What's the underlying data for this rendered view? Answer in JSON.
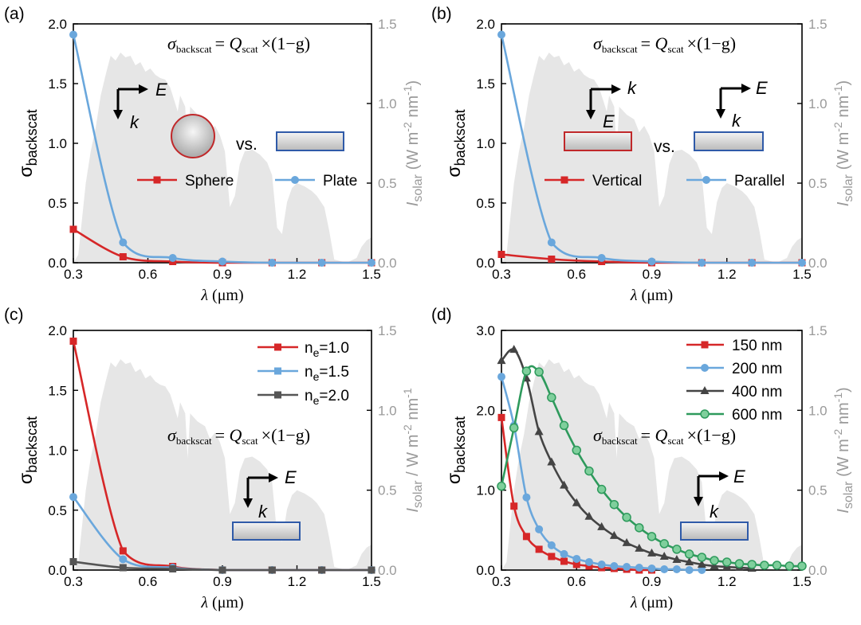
{
  "chart_data": [
    {
      "panel": "(a)",
      "type": "line",
      "x_axis": {
        "label": "λ (μm)",
        "ticks": [
          "0.3",
          "0.6",
          "0.9",
          "1.2",
          "1.5"
        ],
        "range": [
          0.3,
          1.5
        ]
      },
      "y_axis": {
        "label": "σ",
        "label_sub": "backscat",
        "ticks": [
          "0.0",
          "0.5",
          "1.0",
          "1.5",
          "2.0"
        ],
        "range": [
          0,
          2.0
        ]
      },
      "y2_axis": {
        "label": "I",
        "label_sub": "solar",
        "label_rest": " (W m",
        "exp1": "-2",
        "mid": " nm",
        "exp2": "-1",
        "end": ")",
        "ticks": [
          "0.0",
          "0.5",
          "1.0",
          "1.5"
        ],
        "range": [
          0,
          1.5
        ]
      },
      "formula": {
        "sigma": "σ",
        "sub1": "backscat",
        "eq": "= Q",
        "sub2": "scat",
        "rest": "×(1−g)"
      },
      "field_E": "E",
      "field_k": "k",
      "vs": "vs.",
      "series": [
        {
          "name": "Sphere",
          "color": "#d62728",
          "marker": "square",
          "x": [
            0.3,
            0.5,
            0.7,
            0.9,
            1.1,
            1.3,
            1.5
          ],
          "values": [
            0.28,
            0.05,
            0.01,
            0.0,
            0.0,
            0.0,
            0.0
          ]
        },
        {
          "name": "Plate",
          "color": "#6aa7dc",
          "marker": "circle",
          "x": [
            0.3,
            0.5,
            0.7,
            0.9,
            1.1,
            1.3,
            1.5
          ],
          "values": [
            1.91,
            0.17,
            0.04,
            0.01,
            0.0,
            0.0,
            0.0
          ]
        }
      ]
    },
    {
      "panel": "(b)",
      "type": "line",
      "x_axis": {
        "label": "λ (μm)",
        "ticks": [
          "0.3",
          "0.6",
          "0.9",
          "1.2",
          "1.5"
        ],
        "range": [
          0.3,
          1.5
        ]
      },
      "y_axis": {
        "label": "σ",
        "label_sub": "backscat",
        "ticks": [
          "0.0",
          "0.5",
          "1.0",
          "1.5",
          "2.0"
        ],
        "range": [
          0,
          2.0
        ]
      },
      "y2_axis": {
        "label": "I",
        "label_sub": "solar",
        "label_rest": " (W m",
        "exp1": "-2",
        "mid": " nm",
        "exp2": "-1",
        "end": ")",
        "ticks": [
          "0.0",
          "0.5",
          "1.0",
          "1.5"
        ],
        "range": [
          0,
          1.5
        ]
      },
      "formula": {
        "sigma": "σ",
        "sub1": "backscat",
        "eq": "= Q",
        "sub2": "scat",
        "rest": "×(1−g)"
      },
      "field_E": "E",
      "field_k": "k",
      "vs": "vs.",
      "series": [
        {
          "name": "Vertical",
          "color": "#d62728",
          "marker": "square",
          "x": [
            0.3,
            0.5,
            0.7,
            0.9,
            1.1,
            1.3,
            1.5
          ],
          "values": [
            0.07,
            0.03,
            0.01,
            0.0,
            0.0,
            0.0,
            0.0
          ]
        },
        {
          "name": "Parallel",
          "color": "#6aa7dc",
          "marker": "circle",
          "x": [
            0.3,
            0.5,
            0.7,
            0.9,
            1.1,
            1.3,
            1.5
          ],
          "values": [
            1.91,
            0.17,
            0.04,
            0.01,
            0.0,
            0.0,
            0.0
          ]
        }
      ]
    },
    {
      "panel": "(c)",
      "type": "line",
      "x_axis": {
        "label": "λ (μm)",
        "ticks": [
          "0.3",
          "0.6",
          "0.9",
          "1.2",
          "1.5"
        ],
        "range": [
          0.3,
          1.5
        ]
      },
      "y_axis": {
        "label": "σ",
        "label_sub": "backscat",
        "ticks": [
          "0.0",
          "0.5",
          "1.0",
          "1.5",
          "2.0"
        ],
        "range": [
          0,
          2.0
        ]
      },
      "y2_axis": {
        "label": "I",
        "label_sub": "solar",
        "label_rest": " / W m",
        "exp1": "-2",
        "mid": " nm",
        "exp2": "-1",
        "end": "",
        "ticks": [
          "0.0",
          "0.5",
          "1.0",
          "1.5"
        ],
        "range": [
          0,
          1.5
        ]
      },
      "formula": {
        "sigma": "σ",
        "sub1": "backscat",
        "eq": "= Q",
        "sub2": "scat",
        "rest": "×(1−g)"
      },
      "field_E": "E",
      "field_k": "k",
      "series": [
        {
          "name": "n",
          "sub": "e",
          "suffix": "=1.0",
          "color": "#d62728",
          "marker": "square",
          "x": [
            0.3,
            0.5,
            0.7,
            0.9,
            1.1,
            1.3,
            1.5
          ],
          "values": [
            1.91,
            0.16,
            0.03,
            0.0,
            0.0,
            0.0,
            0.0
          ]
        },
        {
          "name": "n",
          "sub": "e",
          "suffix": "=1.5",
          "color": "#6aa7dc",
          "marker": "circle",
          "x": [
            0.3,
            0.5,
            0.7,
            0.9,
            1.1,
            1.3,
            1.5
          ],
          "values": [
            0.61,
            0.09,
            0.02,
            0.0,
            0.0,
            0.0,
            0.0
          ]
        },
        {
          "name": "n",
          "sub": "e",
          "suffix": "=2.0",
          "color": "#555555",
          "marker": "square",
          "x": [
            0.3,
            0.5,
            0.7,
            0.9,
            1.1,
            1.3,
            1.5
          ],
          "values": [
            0.07,
            0.02,
            0.01,
            0.0,
            0.0,
            0.0,
            0.0
          ]
        }
      ]
    },
    {
      "panel": "(d)",
      "type": "line",
      "x_axis": {
        "label": "λ (μm)",
        "ticks": [
          "0.3",
          "0.6",
          "0.9",
          "1.2",
          "1.5"
        ],
        "range": [
          0.3,
          1.5
        ]
      },
      "y_axis": {
        "label": "σ",
        "label_sub": "backscat",
        "ticks": [
          "0.0",
          "1.0",
          "2.0",
          "3.0"
        ],
        "range": [
          0,
          3.0
        ]
      },
      "y2_axis": {
        "label": "I",
        "label_sub": "solar",
        "label_rest": " (W m",
        "exp1": "-2",
        "mid": " nm",
        "exp2": "-1",
        "end": ")",
        "ticks": [
          "0.0",
          "0.5",
          "1.0",
          "1.5"
        ],
        "range": [
          0,
          1.5
        ]
      },
      "formula": {
        "sigma": "σ",
        "sub1": "backscat",
        "eq": "= Q",
        "sub2": "scat",
        "rest": "×(1−g)"
      },
      "field_E": "E",
      "field_k": "k",
      "series": [
        {
          "name": "150 nm",
          "color": "#d62728",
          "marker": "square",
          "x": [
            0.3,
            0.35,
            0.4,
            0.45,
            0.5,
            0.55,
            0.6,
            0.65,
            0.7,
            0.75,
            0.8,
            0.85,
            0.9
          ],
          "values": [
            1.91,
            0.8,
            0.42,
            0.26,
            0.17,
            0.11,
            0.07,
            0.05,
            0.03,
            0.02,
            0.01,
            0.0,
            0.0
          ]
        },
        {
          "name": "200 nm",
          "color": "#6aa7dc",
          "marker": "circle",
          "x": [
            0.3,
            0.35,
            0.4,
            0.45,
            0.5,
            0.55,
            0.6,
            0.65,
            0.7,
            0.75,
            0.8,
            0.85,
            0.9,
            0.95,
            1.0,
            1.05,
            1.1
          ],
          "values": [
            2.42,
            1.81,
            0.91,
            0.51,
            0.31,
            0.2,
            0.14,
            0.1,
            0.07,
            0.05,
            0.04,
            0.03,
            0.02,
            0.01,
            0.01,
            0.0,
            0.0
          ]
        },
        {
          "name": "400 nm",
          "color": "#444444",
          "marker": "triangle",
          "x": [
            0.3,
            0.35,
            0.4,
            0.45,
            0.5,
            0.55,
            0.6,
            0.65,
            0.7,
            0.75,
            0.8,
            0.85,
            0.9,
            0.95,
            1.0,
            1.05,
            1.1,
            1.15,
            1.2,
            1.25,
            1.3
          ],
          "values": [
            2.62,
            2.76,
            2.4,
            1.73,
            1.35,
            1.06,
            0.84,
            0.67,
            0.54,
            0.43,
            0.34,
            0.27,
            0.21,
            0.17,
            0.13,
            0.1,
            0.07,
            0.05,
            0.04,
            0.03,
            0.02
          ]
        },
        {
          "name": "600 nm",
          "color": "#2e9a5c",
          "marker": "circle",
          "x": [
            0.3,
            0.35,
            0.4,
            0.45,
            0.5,
            0.55,
            0.6,
            0.65,
            0.7,
            0.75,
            0.8,
            0.85,
            0.9,
            0.95,
            1.0,
            1.05,
            1.1,
            1.15,
            1.2,
            1.25,
            1.3,
            1.35,
            1.4,
            1.45,
            1.5
          ],
          "values": [
            1.05,
            1.78,
            2.49,
            2.48,
            2.16,
            1.81,
            1.5,
            1.24,
            1.01,
            0.82,
            0.66,
            0.53,
            0.42,
            0.33,
            0.26,
            0.2,
            0.16,
            0.12,
            0.1,
            0.08,
            0.07,
            0.06,
            0.06,
            0.05,
            0.05
          ]
        }
      ]
    }
  ]
}
